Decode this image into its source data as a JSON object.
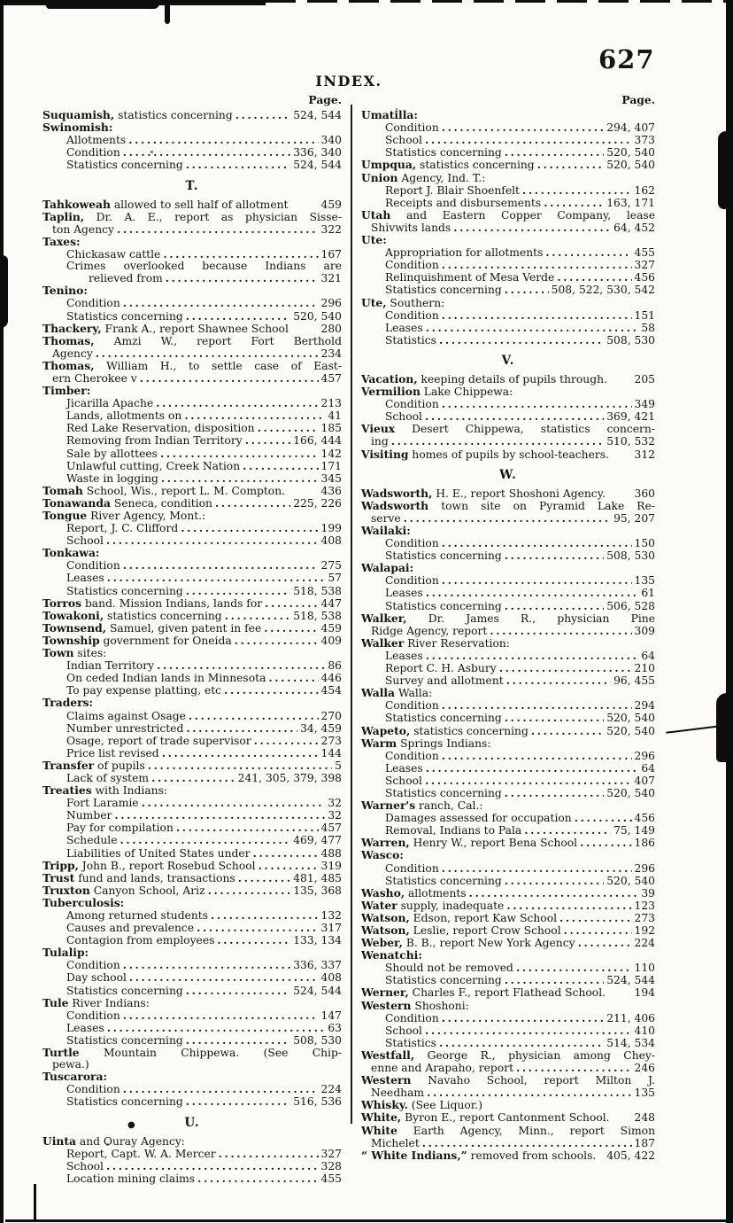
{
  "page": {
    "title": "INDEX.",
    "number": "627"
  },
  "left_column": {
    "page_label": "Page.",
    "items": [
      {
        "b": "Suquamish,",
        "t": " statistics concerning",
        "p": "524, 544",
        "i": 0
      },
      {
        "b": "Swinomish:",
        "i": 0
      },
      {
        "t": "Allotments",
        "p": "340",
        "i": 1
      },
      {
        "t": "Condition",
        "p": "336, 340",
        "i": 1
      },
      {
        "t": "Statistics concerning",
        "p": "524, 544",
        "i": 1
      },
      {
        "s": "T."
      },
      {
        "b": "Tahkoweah",
        "t": " allowed to sell half of allotment",
        "p": "459",
        "i": 0,
        "nd": 1
      },
      {
        "b": "Taplin,",
        "t": " Dr. A. E., report as physician Sisse-",
        "i": 0,
        "nd": 1,
        "j": 1
      },
      {
        "t": "ton Agency",
        "p": "322",
        "i": 0.5
      },
      {
        "b": "Taxes:",
        "i": 0
      },
      {
        "t": "Chickasaw cattle",
        "p": "167",
        "i": 1
      },
      {
        "t": "Crimes overlooked because Indians are",
        "i": 1,
        "nd": 1,
        "j": 1
      },
      {
        "t": "relieved from",
        "p": "321",
        "i": 2
      },
      {
        "b": "Tenino:",
        "i": 0
      },
      {
        "t": "Condition",
        "p": "296",
        "i": 1
      },
      {
        "t": "Statistics concerning",
        "p": "520, 540",
        "i": 1
      },
      {
        "b": "Thackery,",
        "t": " Frank A., report Shawnee School",
        "p": "280",
        "i": 0,
        "nd": 1
      },
      {
        "b": "Thomas,",
        "t": " Amzi W., report Fort Berthold",
        "i": 0,
        "nd": 1,
        "j": 1
      },
      {
        "t": "Agency",
        "p": "234",
        "i": 0.5
      },
      {
        "b": "Thomas,",
        "t": " William H., to settle case of East-",
        "i": 0,
        "nd": 1,
        "j": 1
      },
      {
        "t": "ern Cherokee v",
        "p": "457",
        "i": 0.5
      },
      {
        "b": "Timber:",
        "i": 0
      },
      {
        "t": "Jicarilla Apache",
        "p": "213",
        "i": 1
      },
      {
        "t": "Lands, allotments on",
        "p": "41",
        "i": 1
      },
      {
        "t": "Red Lake Reservation, disposition",
        "p": "185",
        "i": 1
      },
      {
        "t": "Removing from Indian Territory",
        "p": "166, 444",
        "i": 1
      },
      {
        "t": "Sale by allottees",
        "p": "142",
        "i": 1
      },
      {
        "t": "Unlawful cutting, Creek Nation",
        "p": "171",
        "i": 1
      },
      {
        "t": "Waste in logging",
        "p": "345",
        "i": 1
      },
      {
        "b": "Tomah",
        "t": " School, Wis., report L. M. Compton.",
        "p": "436",
        "i": 0,
        "nd": 1
      },
      {
        "b": "Tonawanda",
        "t": " Seneca, condition",
        "p": "225, 226",
        "i": 0
      },
      {
        "b": "Tongue",
        "t": " River Agency, Mont.:",
        "i": 0
      },
      {
        "t": "Report, J. C. Clifford",
        "p": "199",
        "i": 1
      },
      {
        "t": "School",
        "p": "408",
        "i": 1
      },
      {
        "b": "Tonkawa:",
        "i": 0
      },
      {
        "t": "Condition",
        "p": "275",
        "i": 1
      },
      {
        "t": "Leases",
        "p": "57",
        "i": 1
      },
      {
        "t": "Statistics concerning",
        "p": "518, 538",
        "i": 1
      },
      {
        "b": "Torros",
        "t": " band. Mission Indians, lands for",
        "p": "447",
        "i": 0
      },
      {
        "b": "Towakoni,",
        "t": " statistics concerning",
        "p": "518, 538",
        "i": 0
      },
      {
        "b": "Townsend,",
        "t": " Samuel, given patent in fee",
        "p": "459",
        "i": 0
      },
      {
        "b": "Township",
        "t": " government for Oneida",
        "p": "409",
        "i": 0
      },
      {
        "b": "Town",
        "t": " sites:",
        "i": 0
      },
      {
        "t": "Indian Territory",
        "p": "86",
        "i": 1
      },
      {
        "t": "On ceded Indian lands in Minnesota",
        "p": "446",
        "i": 1
      },
      {
        "t": "To pay expense platting, etc",
        "p": "454",
        "i": 1
      },
      {
        "b": "Traders:",
        "i": 0
      },
      {
        "t": "Claims against Osage",
        "p": "270",
        "i": 1
      },
      {
        "t": "Number unrestricted",
        "p": "34, 459",
        "i": 1
      },
      {
        "t": "Osage, report of trade supervisor",
        "p": "273",
        "i": 1
      },
      {
        "t": "Price list revised",
        "p": "144",
        "i": 1
      },
      {
        "b": "Transfer",
        "t": " of pupils",
        "p": "5",
        "i": 0
      },
      {
        "t": "Lack of system",
        "p": "241, 305, 379, 398",
        "i": 1
      },
      {
        "b": "Treaties",
        "t": " with Indians:",
        "i": 0
      },
      {
        "t": "Fort Laramie",
        "p": "32",
        "i": 1
      },
      {
        "t": "Number",
        "p": "32",
        "i": 1
      },
      {
        "t": "Pay for compilation",
        "p": "457",
        "i": 1
      },
      {
        "t": "Schedule",
        "p": "469, 477",
        "i": 1
      },
      {
        "t": "Liabilities of United States under",
        "p": "488",
        "i": 1
      },
      {
        "b": "Tripp,",
        "t": " John B., report Rosebud School",
        "p": "319",
        "i": 0
      },
      {
        "b": "Trust",
        "t": " fund and lands, transactions",
        "p": "481, 485",
        "i": 0
      },
      {
        "b": "Truxton",
        "t": " Canyon School, Ariz",
        "p": "135, 368",
        "i": 0
      },
      {
        "b": "Tuberculosis:",
        "i": 0
      },
      {
        "t": "Among returned students",
        "p": "132",
        "i": 1
      },
      {
        "t": "Causes and prevalence",
        "p": "317",
        "i": 1
      },
      {
        "t": "Contagion from employees",
        "p": "133, 134",
        "i": 1
      },
      {
        "b": "Tulalip:",
        "i": 0
      },
      {
        "t": "Condition",
        "p": "336, 337",
        "i": 1
      },
      {
        "t": "Day school",
        "p": "408",
        "i": 1
      },
      {
        "t": "Statistics concerning",
        "p": "524, 544",
        "i": 1
      },
      {
        "b": "Tule",
        "t": " River Indians:",
        "i": 0
      },
      {
        "t": "Condition",
        "p": "147",
        "i": 1
      },
      {
        "t": "Leases",
        "p": "63",
        "i": 1
      },
      {
        "t": "Statistics concerning",
        "p": "508, 530",
        "i": 1
      },
      {
        "b": "Turtle",
        "t": " Mountain Chippewa. (See Chip-",
        "i": 0,
        "nd": 1,
        "j": 1
      },
      {
        "t": "pewa.)",
        "i": 0.5,
        "nd": 1
      },
      {
        "b": "Tuscarora:",
        "i": 0
      },
      {
        "t": "Condition",
        "p": "224",
        "i": 1
      },
      {
        "t": "Statistics concerning",
        "p": "516, 536",
        "i": 1
      },
      {
        "s": "U.",
        "bullet": "●"
      },
      {
        "b": "Uinta",
        "t": " and Ouray Agency:",
        "i": 0
      },
      {
        "t": "Report, Capt. W. A. Mercer",
        "p": "327",
        "i": 1
      },
      {
        "t": "School",
        "p": "328",
        "i": 1
      },
      {
        "t": "Location mining claims",
        "p": "455",
        "i": 1
      }
    ]
  },
  "right_column": {
    "page_label": "Page.",
    "items": [
      {
        "b": "Umatilla:",
        "i": 0
      },
      {
        "t": "Condition",
        "p": "294, 407",
        "i": 1
      },
      {
        "t": "School",
        "p": "373",
        "i": 1
      },
      {
        "t": "Statistics concerning",
        "p": "520, 540",
        "i": 1
      },
      {
        "b": "Umpqua,",
        "t": " statistics concerning",
        "p": "520, 540",
        "i": 0
      },
      {
        "b": "Union",
        "t": " Agency, Ind. T.:",
        "i": 0
      },
      {
        "t": "Report J. Blair Shoenfelt",
        "p": "162",
        "i": 1
      },
      {
        "t": "Receipts and disbursements",
        "p": "163, 171",
        "i": 1
      },
      {
        "b": "Utah",
        "t": " and Eastern Copper Company, lease",
        "i": 0,
        "nd": 1,
        "j": 1
      },
      {
        "t": "Shivwits lands",
        "p": "64, 452",
        "i": 0.5
      },
      {
        "b": "Ute:",
        "i": 0
      },
      {
        "t": "Appropriation for allotments",
        "p": "455",
        "i": 1
      },
      {
        "t": "Condition",
        "p": "327",
        "i": 1
      },
      {
        "t": "Relinquishment of Mesa Verde",
        "p": "456",
        "i": 1
      },
      {
        "t": "Statistics concerning",
        "p": "508, 522, 530, 542",
        "i": 1
      },
      {
        "b": "Ute,",
        "t": " Southern:",
        "i": 0
      },
      {
        "t": "Condition",
        "p": "151",
        "i": 1
      },
      {
        "t": "Leases",
        "p": "58",
        "i": 1
      },
      {
        "t": "Statistics",
        "p": "508, 530",
        "i": 1
      },
      {
        "s": "V."
      },
      {
        "b": "Vacation,",
        "t": " keeping details of pupils through.",
        "p": "205",
        "i": 0,
        "nd": 1
      },
      {
        "b": "Vermilion",
        "t": " Lake Chippewa:",
        "i": 0
      },
      {
        "t": "Condition",
        "p": "349",
        "i": 1
      },
      {
        "t": "School",
        "p": "369, 421",
        "i": 1
      },
      {
        "b": "Vieux",
        "t": " Desert Chippewa, statistics concern-",
        "i": 0,
        "nd": 1,
        "j": 1
      },
      {
        "t": "ing",
        "p": "510, 532",
        "i": 0.5
      },
      {
        "b": "Visiting",
        "t": " homes of pupils by school-teachers.",
        "p": "312",
        "i": 0,
        "nd": 1
      },
      {
        "s": "W."
      },
      {
        "b": "Wadsworth,",
        "t": " H. E., report Shoshoni Agency.",
        "p": "360",
        "i": 0,
        "nd": 1
      },
      {
        "b": "Wadsworth",
        "t": " town site on Pyramid Lake Re-",
        "i": 0,
        "nd": 1,
        "j": 1
      },
      {
        "t": "serve",
        "p": "95, 207",
        "i": 0.5
      },
      {
        "b": "Wailaki:",
        "i": 0
      },
      {
        "t": "Condition",
        "p": "150",
        "i": 1
      },
      {
        "t": "Statistics concerning",
        "p": "508, 530",
        "i": 1
      },
      {
        "b": "Walapai:",
        "i": 0
      },
      {
        "t": "Condition",
        "p": "135",
        "i": 1
      },
      {
        "t": "Leases",
        "p": "61",
        "i": 1
      },
      {
        "t": "Statistics concerning",
        "p": "506, 528",
        "i": 1
      },
      {
        "b": "Walker,",
        "t": " Dr. James R., physician Pine",
        "i": 0,
        "nd": 1,
        "j": 1
      },
      {
        "t": "Ridge Agency, report",
        "p": "309",
        "i": 0.5
      },
      {
        "b": "Walker",
        "t": " River Reservation:",
        "i": 0
      },
      {
        "t": "Leases",
        "p": "64",
        "i": 1
      },
      {
        "t": "Report C. H. Asbury",
        "p": "210",
        "i": 1
      },
      {
        "t": "Survey and allotment",
        "p": "96, 455",
        "i": 1
      },
      {
        "b": "Walla",
        "t": " Walla:",
        "i": 0
      },
      {
        "t": "Condition",
        "p": "294",
        "i": 1
      },
      {
        "t": "Statistics concerning",
        "p": "520, 540",
        "i": 1
      },
      {
        "b": "Wapeto,",
        "t": " statistics concerning",
        "p": "520, 540",
        "i": 0
      },
      {
        "b": "Warm",
        "t": " Springs Indians:",
        "i": 0
      },
      {
        "t": "Condition",
        "p": "296",
        "i": 1
      },
      {
        "t": "Leases",
        "p": "64",
        "i": 1
      },
      {
        "t": "School",
        "p": "407",
        "i": 1
      },
      {
        "t": "Statistics concerning",
        "p": "520, 540",
        "i": 1
      },
      {
        "b": "Warner's",
        "t": " ranch, Cal.:",
        "i": 0
      },
      {
        "t": "Damages assessed for occupation",
        "p": "456",
        "i": 1
      },
      {
        "t": "Removal, Indians to Pala",
        "p": "75, 149",
        "i": 1
      },
      {
        "b": "Warren,",
        "t": " Henry W., report Bena School",
        "p": "186",
        "i": 0
      },
      {
        "b": "Wasco:",
        "i": 0
      },
      {
        "t": "Condition",
        "p": "296",
        "i": 1
      },
      {
        "t": "Statistics concerning",
        "p": "520, 540",
        "i": 1
      },
      {
        "b": "Washo,",
        "t": " allotments",
        "p": "39",
        "i": 0
      },
      {
        "b": "Water",
        "t": " supply, inadequate",
        "p": "123",
        "i": 0
      },
      {
        "b": "Watson,",
        "t": " Edson, report Kaw School",
        "p": "273",
        "i": 0
      },
      {
        "b": "Watson,",
        "t": " Leslie, report Crow School",
        "p": "192",
        "i": 0
      },
      {
        "b": "Weber,",
        "t": " B. B., report New York Agency",
        "p": "224",
        "i": 0
      },
      {
        "b": "Wenatchi:",
        "i": 0
      },
      {
        "t": "Should not be removed",
        "p": "110",
        "i": 1
      },
      {
        "t": "Statistics concerning",
        "p": "524, 544",
        "i": 1
      },
      {
        "b": "Werner,",
        "t": " Charles F., report Flathead School.",
        "p": "194",
        "i": 0,
        "nd": 1
      },
      {
        "b": "Western",
        "t": " Shoshoni:",
        "i": 0
      },
      {
        "t": "Condition",
        "p": "211, 406",
        "i": 1
      },
      {
        "t": "School",
        "p": "410",
        "i": 1
      },
      {
        "t": "Statistics",
        "p": "514, 534",
        "i": 1
      },
      {
        "b": "Westfall,",
        "t": " George R., physician among Chey-",
        "i": 0,
        "nd": 1,
        "j": 1
      },
      {
        "t": "enne and Arapaho, report",
        "p": "246",
        "i": 0.5
      },
      {
        "b": "Western",
        "t": " Navaho School, report Milton J.",
        "i": 0,
        "nd": 1,
        "j": 1
      },
      {
        "t": "Needham",
        "p": "135",
        "i": 0.5
      },
      {
        "b": "Whisky.",
        "t": " (See Liquor.)",
        "i": 0,
        "nd": 1
      },
      {
        "b": "White,",
        "t": " Byron E., report Cantonment School.",
        "p": "248",
        "i": 0,
        "nd": 1
      },
      {
        "b": "White",
        "t": " Earth Agency, Minn., report Simon",
        "i": 0,
        "nd": 1,
        "j": 1
      },
      {
        "t": "Michelet",
        "p": "187",
        "i": 0.5
      },
      {
        "b": "“ White Indians,”",
        "t": " removed from schools.",
        "p": "405, 422",
        "i": 0,
        "nd": 1
      }
    ]
  }
}
